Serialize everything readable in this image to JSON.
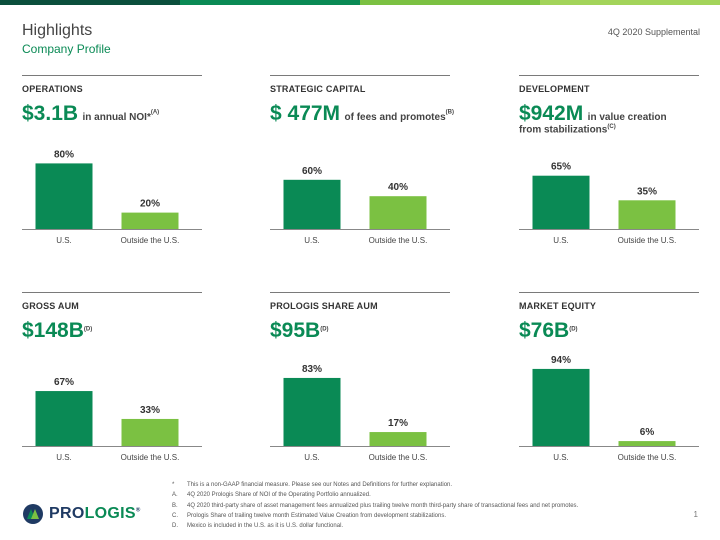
{
  "brand_colors": [
    "#0b4f3c",
    "#0a8a55",
    "#7bc142",
    "#a3d45a"
  ],
  "header": {
    "title": "Highlights",
    "subtitle": "Company Profile",
    "supplement": "4Q 2020 Supplemental"
  },
  "panels": [
    {
      "heading": "OPERATIONS",
      "metric": "$3.1B",
      "desc": "in annual NOI*",
      "note": "(A)",
      "desc2": ""
    },
    {
      "heading": "STRATEGIC CAPITAL",
      "metric": "$ 477M",
      "desc": "of fees and promotes",
      "note": "(B)",
      "desc2": ""
    },
    {
      "heading": "DEVELOPMENT",
      "metric": "$942M",
      "desc": "in value creation",
      "note": "(C)",
      "desc2": "from stabilizations"
    },
    {
      "heading": "GROSS AUM",
      "metric": "$148B",
      "desc": "",
      "note": "(D)",
      "desc2": ""
    },
    {
      "heading": "PROLOGIS SHARE AUM",
      "metric": "$95B",
      "desc": "",
      "note": "(D)",
      "desc2": ""
    },
    {
      "heading": "MARKET EQUITY",
      "metric": "$76B",
      "desc": "",
      "note": "(D)",
      "desc2": ""
    }
  ],
  "chart_data": [
    {
      "type": "bar",
      "categories": [
        "U.S.",
        "Outside the U.S."
      ],
      "values": [
        80,
        20
      ],
      "data_labels": [
        "80%",
        "20%"
      ],
      "colors": [
        "#0a8a55",
        "#7bc142"
      ],
      "ylim": [
        0,
        100
      ]
    },
    {
      "type": "bar",
      "categories": [
        "U.S.",
        "Outside the U.S."
      ],
      "values": [
        60,
        40
      ],
      "data_labels": [
        "60%",
        "40%"
      ],
      "colors": [
        "#0a8a55",
        "#7bc142"
      ],
      "ylim": [
        0,
        100
      ]
    },
    {
      "type": "bar",
      "categories": [
        "U.S.",
        "Outside the U.S."
      ],
      "values": [
        65,
        35
      ],
      "data_labels": [
        "65%",
        "35%"
      ],
      "colors": [
        "#0a8a55",
        "#7bc142"
      ],
      "ylim": [
        0,
        100
      ]
    },
    {
      "type": "bar",
      "categories": [
        "U.S.",
        "Outside the U.S."
      ],
      "values": [
        67,
        33
      ],
      "data_labels": [
        "67%",
        "33%"
      ],
      "colors": [
        "#0a8a55",
        "#7bc142"
      ],
      "ylim": [
        0,
        100
      ]
    },
    {
      "type": "bar",
      "categories": [
        "U.S.",
        "Outside the U.S."
      ],
      "values": [
        83,
        17
      ],
      "data_labels": [
        "83%",
        "17%"
      ],
      "colors": [
        "#0a8a55",
        "#7bc142"
      ],
      "ylim": [
        0,
        100
      ]
    },
    {
      "type": "bar",
      "categories": [
        "U.S.",
        "Outside the U.S."
      ],
      "values": [
        94,
        6
      ],
      "data_labels": [
        "94%",
        "6%"
      ],
      "colors": [
        "#0a8a55",
        "#7bc142"
      ],
      "ylim": [
        0,
        100
      ]
    }
  ],
  "footnotes": [
    {
      "mark": "*",
      "text": "This is a non-GAAP financial measure. Please see our Notes and Definitions for further explanation."
    },
    {
      "mark": "A.",
      "text": "4Q 2020 Prologis Share of NOI of the Operating Portfolio annualized."
    },
    {
      "mark": "B.",
      "text": "4Q 2020 third-party share of asset management fees annualized plus trailing twelve month third-party share of transactional fees and net promotes."
    },
    {
      "mark": "C.",
      "text": "Prologis Share of trailing twelve month Estimated Value Creation from development stabilizations."
    },
    {
      "mark": "D.",
      "text": "Mexico is included in the U.S. as it is U.S. dollar functional."
    }
  ],
  "logo": {
    "part1": "PRO",
    "part2": "LOGIS",
    "mark": "®",
    "icon": "prologis-logo-icon"
  },
  "page_number": "1"
}
